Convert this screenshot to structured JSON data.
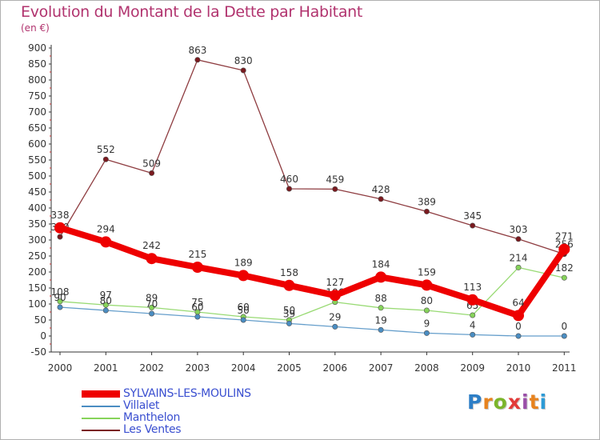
{
  "title": "Evolution du Montant de la Dette par Habitant",
  "subtitle": "(en €)",
  "logo": {
    "letters": [
      "P",
      "r",
      "o",
      "x",
      "i",
      "t",
      "i"
    ],
    "colors": [
      "#2d7ec6",
      "#e7831f",
      "#7bb52b",
      "#e23b39",
      "#9a4fa8",
      "#e7831f",
      "#2d9bd6"
    ]
  },
  "chart_data": {
    "type": "line",
    "title": "Evolution du Montant de la Dette par Habitant",
    "ylabel": "(en €)",
    "xlabel": "",
    "x": [
      "2000",
      "2001",
      "2002",
      "2003",
      "2004",
      "2005",
      "2006",
      "2007",
      "2008",
      "2009",
      "2010",
      "2011"
    ],
    "ylim": [
      -50,
      900
    ],
    "yticks": [
      "-50",
      "0",
      "50",
      "100",
      "150",
      "200",
      "250",
      "300",
      "350",
      "400",
      "450",
      "500",
      "550",
      "600",
      "650",
      "700",
      "750",
      "800",
      "850",
      "900"
    ],
    "grid": false,
    "legend_position": "bottom-left",
    "series": [
      {
        "name": "Les Ventes",
        "color": "#7a1a1f",
        "values": [
          310,
          552,
          509,
          863,
          830,
          460,
          459,
          428,
          389,
          345,
          303,
          256
        ],
        "labels": [
          "310",
          "552",
          "509",
          "863",
          "830",
          "460",
          "459",
          "428",
          "389",
          "345",
          "303",
          "256"
        ]
      },
      {
        "name": "Manthelon",
        "color": "#86d35a",
        "values": [
          108,
          97,
          89,
          75,
          60,
          50,
          106,
          88,
          80,
          65,
          214,
          182
        ],
        "labels": [
          "108",
          "97",
          "89",
          "75",
          "60",
          "50",
          "106",
          "88",
          "80",
          "65",
          "214",
          "182"
        ]
      },
      {
        "name": "Villalet",
        "color": "#4a8dc2",
        "values": [
          90,
          80,
          70,
          60,
          50,
          39,
          29,
          19,
          9,
          4,
          0,
          0
        ],
        "labels": [
          "90",
          "80",
          "70",
          "60",
          "50",
          "39",
          "29",
          "19",
          "9",
          "4",
          "0",
          "0"
        ]
      },
      {
        "name": "SYLVAINS-LES-MOULINS",
        "color": "#ee0000",
        "values": [
          338,
          294,
          242,
          215,
          189,
          158,
          127,
          184,
          159,
          113,
          64,
          271
        ],
        "labels": [
          "338",
          "294",
          "242",
          "215",
          "189",
          "158",
          "127",
          "184",
          "159",
          "113",
          "64",
          "271"
        ]
      }
    ]
  },
  "legend": [
    {
      "name": "SYLVAINS-LES-MOULINS",
      "color": "#ee0000"
    },
    {
      "name": "Villalet",
      "color": "#4a8dc2"
    },
    {
      "name": "Manthelon",
      "color": "#86d35a"
    },
    {
      "name": "Les Ventes",
      "color": "#7a1a1f"
    }
  ]
}
